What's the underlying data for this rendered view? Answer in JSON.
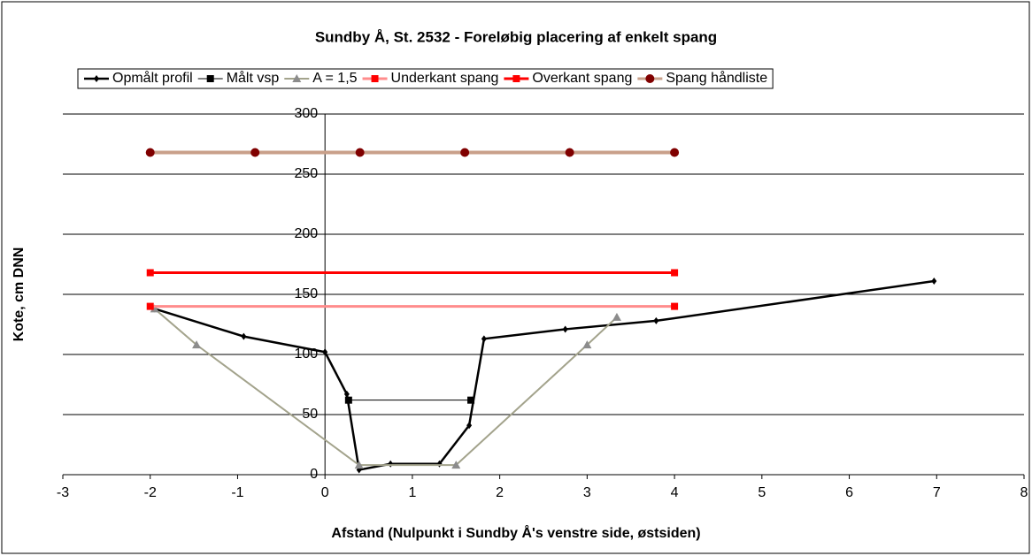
{
  "chart_data": {
    "type": "scatter",
    "title": "Sundby Å, St. 2532 - Foreløbig placering af enkelt spang",
    "x_label": "Afstand (Nulpunkt i Sundby Å's venstre side, østsiden)",
    "y_label": "Kote, cm DNN",
    "xlim": [
      -3,
      8
    ],
    "xticks": [
      -3,
      -2,
      -1,
      0,
      1,
      2,
      3,
      4,
      5,
      6,
      7,
      8
    ],
    "ylim": [
      0,
      300
    ],
    "yticks": [
      0,
      50,
      100,
      150,
      200,
      250,
      300
    ],
    "grid": true,
    "legend": "top",
    "series": [
      {
        "name": "Opmålt profil",
        "color": "#000000",
        "marker_color": "#000000",
        "marker": "diamond",
        "line_width": 2.5,
        "x": [
          -1.95,
          -0.93,
          0,
          0.25,
          0.39,
          0.75,
          1.31,
          1.65,
          1.82,
          2.75,
          3.79,
          6.97
        ],
        "values": [
          138,
          115,
          102,
          67,
          4,
          9,
          9,
          41,
          113,
          121,
          128,
          161
        ]
      },
      {
        "name": "Målt vsp",
        "color": "#000000",
        "marker_color": "#000000",
        "marker": "square",
        "line_width": 1,
        "x": [
          0.27,
          1.67
        ],
        "values": [
          62,
          62
        ]
      },
      {
        "name": "A = 1,5",
        "color": "#a3a38c",
        "marker_color": "#8c8c8c",
        "marker": "triangle",
        "line_width": 2,
        "x": [
          -1.95,
          -1.47,
          0.39,
          1.5,
          3.0,
          3.34
        ],
        "values": [
          138,
          108,
          8,
          8,
          108,
          131
        ]
      },
      {
        "name": "Underkant spang",
        "color": "#ff8c8c",
        "marker_color": "#ff0000",
        "marker": "square",
        "line_width": 3,
        "x": [
          -2,
          4
        ],
        "values": [
          140,
          140
        ]
      },
      {
        "name": "Overkant spang",
        "color": "#ff0000",
        "marker_color": "#ff0000",
        "marker": "square",
        "line_width": 3,
        "x": [
          -2,
          4
        ],
        "values": [
          168,
          168
        ]
      },
      {
        "name": "Spang håndliste",
        "color": "#c9a08a",
        "marker_color": "#800000",
        "marker": "circle",
        "line_width": 4,
        "x": [
          -2,
          -0.8,
          0.4,
          1.6,
          2.8,
          4
        ],
        "values": [
          268,
          268,
          268,
          268,
          268,
          268
        ]
      }
    ]
  }
}
